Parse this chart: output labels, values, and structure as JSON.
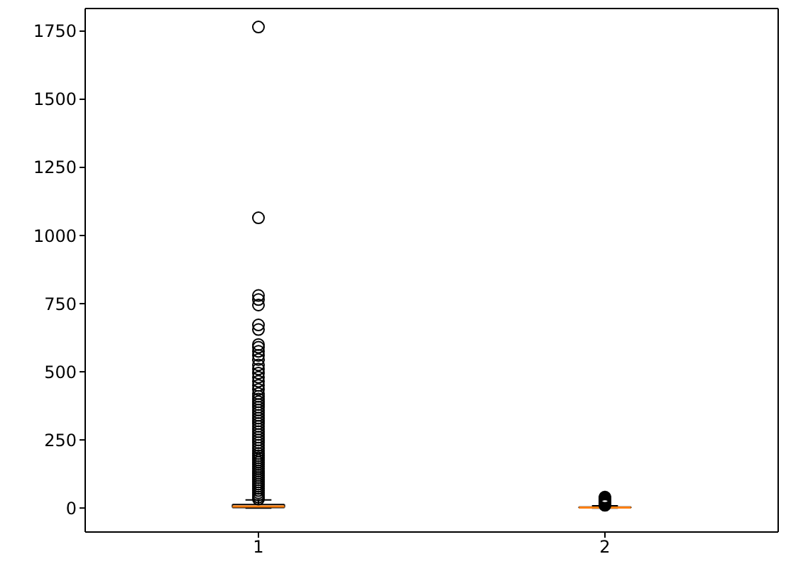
{
  "chart_data": {
    "type": "box",
    "categories": [
      "1",
      "2"
    ],
    "boxes": [
      {
        "low": 0,
        "q1": 2,
        "median": 6,
        "q3": 13,
        "high": 30,
        "outliers": [
          33,
          40,
          48,
          56,
          64,
          72,
          80,
          88,
          96,
          104,
          112,
          120,
          128,
          136,
          144,
          152,
          160,
          168,
          176,
          184,
          192,
          200,
          210,
          220,
          230,
          240,
          250,
          260,
          270,
          280,
          290,
          300,
          310,
          320,
          330,
          340,
          350,
          360,
          370,
          380,
          390,
          400,
          410,
          420,
          435,
          450,
          465,
          480,
          495,
          510,
          525,
          545,
          560,
          575,
          590,
          600,
          655,
          672,
          745,
          765,
          780,
          1065,
          1765
        ]
      },
      {
        "low": 0,
        "q1": 1,
        "median": 2,
        "q3": 4,
        "high": 8,
        "outliers": [
          10,
          13,
          16,
          19,
          22,
          25,
          28,
          31,
          34,
          37,
          40
        ]
      }
    ],
    "ylim": [
      -88,
      1833
    ],
    "yticks": [
      0,
      250,
      500,
      750,
      1000,
      1250,
      1500,
      1750
    ],
    "grid": false
  }
}
